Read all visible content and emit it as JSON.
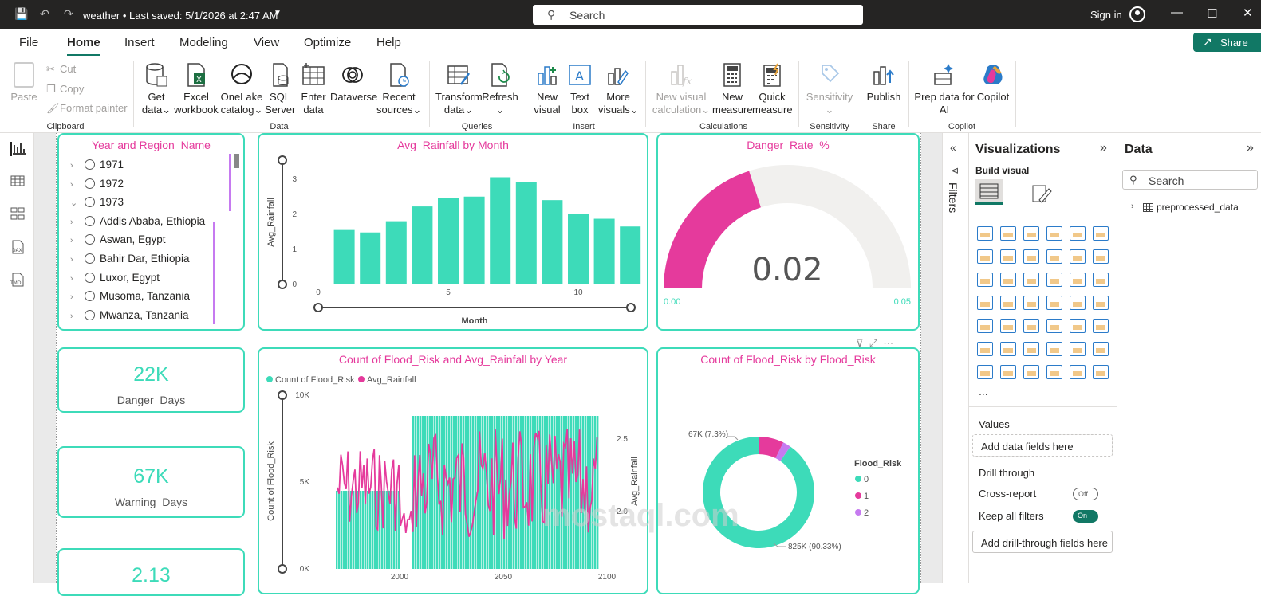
{
  "titlebar": {
    "title": "weather • Last saved: 5/1/2026 at 2:47 AM",
    "search": "Search",
    "signin": "Sign in"
  },
  "menu": {
    "file": "File",
    "home": "Home",
    "insert": "Insert",
    "modeling": "Modeling",
    "view": "View",
    "optimize": "Optimize",
    "help": "Help",
    "share": "Share"
  },
  "ribbon": {
    "paste": "Paste",
    "cut": "Cut",
    "copy": "Copy",
    "format_painter": "Format painter",
    "clipboard": "Clipboard",
    "get_data_1": "Get",
    "get_data_2": "data",
    "excel_1": "Excel",
    "excel_2": "workbook",
    "onelake_1": "OneLake",
    "onelake_2": "catalog",
    "sql_1": "SQL",
    "sql_2": "Server",
    "enter_1": "Enter",
    "enter_2": "data",
    "dataverse": "Dataverse",
    "recent_1": "Recent",
    "recent_2": "sources",
    "data_grp": "Data",
    "transform_1": "Transform",
    "transform_2": "data",
    "refresh": "Refresh",
    "queries_grp": "Queries",
    "new_visual_1": "New",
    "new_visual_2": "visual",
    "text_box_1": "Text",
    "text_box_2": "box",
    "more_visuals_1": "More",
    "more_visuals_2": "visuals",
    "insert_grp": "Insert",
    "new_calc_1": "New visual",
    "new_calc_2": "calculation",
    "new_measure_1": "New",
    "new_measure_2": "measure",
    "quick_measure_1": "Quick",
    "quick_measure_2": "measure",
    "calc_grp": "Calculations",
    "sensitivity": "Sensitivity",
    "sensitivity_grp": "Sensitivity",
    "publish": "Publish",
    "share_grp": "Share",
    "prep_1": "Prep data for",
    "prep_2": "AI",
    "copilot": "Copilot",
    "copilot_grp": "Copilot"
  },
  "slicer": {
    "title": "Year and Region_Name",
    "items": [
      "1971",
      "1972",
      "1973",
      "Addis Ababa, Ethiopia",
      "Aswan, Egypt",
      "Bahir Dar, Ethiopia",
      "Luxor, Egypt",
      "Musoma, Tanzania",
      "Mwanza, Tanzania"
    ]
  },
  "kpis": [
    {
      "value": "22K",
      "label": "Danger_Days"
    },
    {
      "value": "67K",
      "label": "Warning_Days"
    },
    {
      "value": "2.13",
      "label": ""
    }
  ],
  "bar_chart": {
    "title": "Avg_Rainfall by Month",
    "ylabel": "Avg_Rainfall",
    "xlabel": "Month",
    "yticks": [
      "0",
      "1",
      "2",
      "3"
    ],
    "xticks": [
      "0",
      "5",
      "10"
    ]
  },
  "gauge": {
    "title": "Danger_Rate_%",
    "value": "0.02",
    "min": "0.00",
    "max": "0.05",
    "fill_fraction": 0.4
  },
  "combo": {
    "title": "Count of Flood_Risk and Avg_Rainfall by Year",
    "legend1": "Count of Flood_Risk",
    "legend2": "Avg_Rainfall",
    "ylabel": "Count of Flood_Risk",
    "y2label": "Avg_Rainfall",
    "yticks": [
      "0K",
      "5K",
      "10K"
    ],
    "y2ticks": [
      "2.0",
      "2.5"
    ],
    "xticks": [
      "2000",
      "2050",
      "2100"
    ]
  },
  "donut": {
    "title": "Count of Flood_Risk by Flood_Risk",
    "label_big": "825K (90.33%)",
    "label_small": "67K (7.3%)",
    "legend_title": "Flood_Risk",
    "legend": [
      "0",
      "1",
      "2"
    ]
  },
  "chart_data": [
    {
      "type": "bar",
      "title": "Avg_Rainfall by Month",
      "xlabel": "Month",
      "ylabel": "Avg_Rainfall",
      "x": [
        1,
        2,
        3,
        4,
        5,
        6,
        7,
        8,
        9,
        10,
        11,
        12
      ],
      "values": [
        1.55,
        1.48,
        1.8,
        2.22,
        2.45,
        2.5,
        3.05,
        2.92,
        2.4,
        2.0,
        1.87,
        1.65
      ],
      "xlim": [
        0,
        12.5
      ],
      "ylim": [
        0,
        3.2
      ]
    },
    {
      "type": "pie",
      "title": "Count of Flood_Risk by Flood_Risk",
      "categories": [
        "0",
        "1",
        "2"
      ],
      "values": [
        825,
        67,
        21
      ],
      "hole": true
    }
  ],
  "colors": {
    "teal": "#3ddbb9",
    "pink": "#e53a9c",
    "violet": "#c67af0",
    "accent": "#117865"
  },
  "filters": {
    "label": "Filters"
  },
  "viz": {
    "title": "Visualizations",
    "build": "Build visual",
    "values": "Values",
    "add_fields": "Add data fields here",
    "drill": "Drill through",
    "cross_report": "Cross-report",
    "off": "Off",
    "keep_filters": "Keep all filters",
    "on": "On",
    "add_drill": "Add drill-through fields here",
    "more": "..."
  },
  "data_pane": {
    "title": "Data",
    "search": "Search",
    "table": "preprocessed_data"
  },
  "watermark": "mostaql.com"
}
